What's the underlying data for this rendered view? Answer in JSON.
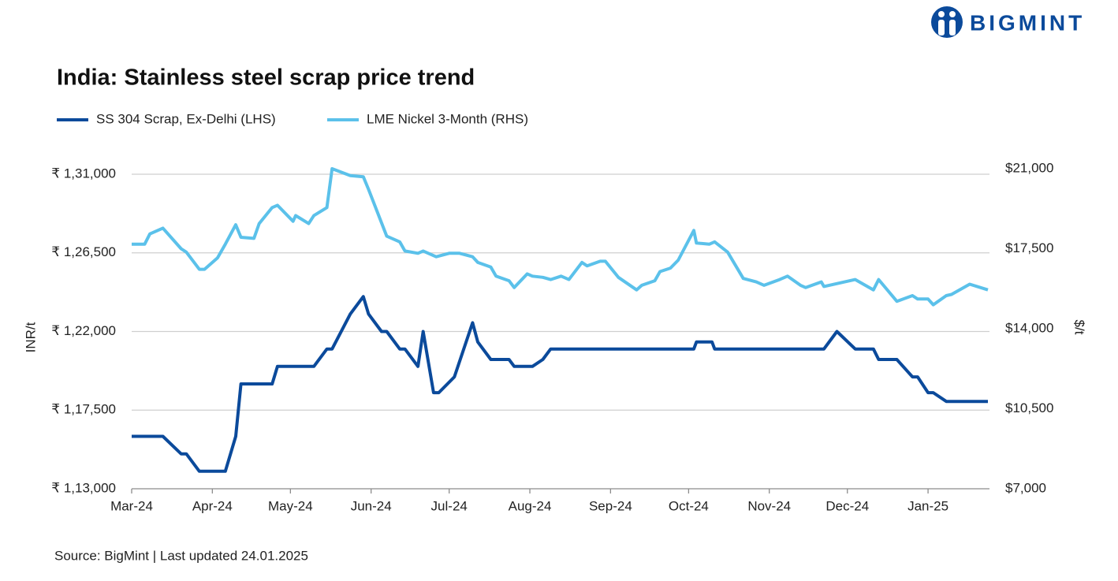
{
  "brand": "BIGMINT",
  "source": "Source: BigMint | Last updated 24.01.2025",
  "chart_data": {
    "type": "line",
    "title": "India: Stainless steel scrap price trend",
    "y_label": "INR/t",
    "y2_label": "$/t",
    "xlim": [
      0,
      329
    ],
    "xticks": [
      {
        "value": 0,
        "label": "Mar-24"
      },
      {
        "value": 31,
        "label": "Apr-24"
      },
      {
        "value": 61,
        "label": "May-24"
      },
      {
        "value": 92,
        "label": "Jun-24"
      },
      {
        "value": 122,
        "label": "Jul-24"
      },
      {
        "value": 153,
        "label": "Aug-24"
      },
      {
        "value": 184,
        "label": "Sep-24"
      },
      {
        "value": 214,
        "label": "Oct-24"
      },
      {
        "value": 245,
        "label": "Nov-24"
      },
      {
        "value": 275,
        "label": "Dec-24"
      },
      {
        "value": 306,
        "label": "Jan-25"
      }
    ],
    "ylim": [
      113000,
      131000
    ],
    "yticks": [
      {
        "value": 113000,
        "label": "₹ 1,13,000"
      },
      {
        "value": 117500,
        "label": "₹ 1,17,500"
      },
      {
        "value": 122000,
        "label": "₹ 1,22,000"
      },
      {
        "value": 126500,
        "label": "₹ 1,26,500"
      },
      {
        "value": 131000,
        "label": "₹ 1,31,000"
      }
    ],
    "y2lim": [
      7000,
      21000
    ],
    "y2ticks": [
      {
        "value": 7000,
        "label": "$7,000"
      },
      {
        "value": 10500,
        "label": "$10,500"
      },
      {
        "value": 14000,
        "label": "$14,000"
      },
      {
        "value": 17500,
        "label": "$17,500"
      },
      {
        "value": 21000,
        "label": "$21,000"
      }
    ],
    "grid": true,
    "legend": "top-left",
    "series": [
      {
        "name": "SS 304 Scrap, Ex-Delhi (LHS)",
        "color": "#0b4a9b",
        "axis": "y",
        "x": [
          0,
          12,
          19,
          21,
          26,
          36,
          40,
          42,
          54,
          56,
          70,
          75,
          77,
          84,
          89,
          91,
          96,
          98,
          103,
          105,
          110,
          112,
          116,
          118,
          124,
          131,
          133,
          138,
          145,
          147,
          154,
          158,
          161,
          216,
          217,
          223,
          224,
          266,
          271,
          278,
          285,
          287,
          294,
          300,
          302,
          306,
          308,
          313,
          329
        ],
        "values": [
          116000,
          116000,
          115000,
          115000,
          114000,
          114000,
          116000,
          119000,
          119000,
          120000,
          120000,
          121000,
          121000,
          123000,
          124000,
          123000,
          122000,
          122000,
          121000,
          121000,
          120000,
          122000,
          118500,
          118500,
          119400,
          122500,
          121400,
          120400,
          120400,
          120000,
          120000,
          120400,
          121000,
          121000,
          121400,
          121400,
          121000,
          121000,
          122000,
          121000,
          121000,
          120400,
          120400,
          119400,
          119400,
          118500,
          118500,
          118000,
          118000
        ]
      },
      {
        "name": "LME Nickel 3-Month (RHS)",
        "color": "#5bc1ea",
        "axis": "y2",
        "x": [
          0,
          5,
          7,
          12,
          19,
          21,
          26,
          28,
          33,
          36,
          40,
          42,
          47,
          49,
          54,
          56,
          62,
          63,
          68,
          70,
          75,
          77,
          84,
          89,
          91,
          98,
          103,
          105,
          110,
          112,
          117,
          122,
          126,
          131,
          133,
          138,
          140,
          145,
          147,
          152,
          154,
          158,
          161,
          165,
          168,
          173,
          175,
          180,
          182,
          187,
          194,
          196,
          201,
          203,
          207,
          210,
          216,
          217,
          222,
          224,
          229,
          235,
          240,
          243,
          249,
          252,
          257,
          259,
          265,
          266,
          278,
          285,
          287,
          294,
          300,
          302,
          306,
          308,
          313,
          315,
          322,
          329
        ],
        "values": [
          17700,
          17700,
          18150,
          18400,
          17500,
          17350,
          16600,
          16600,
          17100,
          17700,
          18550,
          18000,
          17950,
          18600,
          19300,
          19400,
          18700,
          18950,
          18600,
          18950,
          19300,
          21000,
          20700,
          20650,
          20100,
          18050,
          17800,
          17400,
          17300,
          17400,
          17150,
          17300,
          17300,
          17150,
          16900,
          16700,
          16300,
          16100,
          15800,
          16400,
          16300,
          16250,
          16150,
          16300,
          16150,
          16900,
          16750,
          16950,
          16950,
          16250,
          15700,
          15900,
          16100,
          16500,
          16650,
          17000,
          18300,
          17750,
          17700,
          17800,
          17350,
          16200,
          16050,
          15900,
          16150,
          16300,
          15900,
          15800,
          16050,
          15850,
          16150,
          15700,
          16150,
          15200,
          15450,
          15300,
          15300,
          15050,
          15450,
          15500,
          15950,
          15700
        ]
      }
    ]
  }
}
